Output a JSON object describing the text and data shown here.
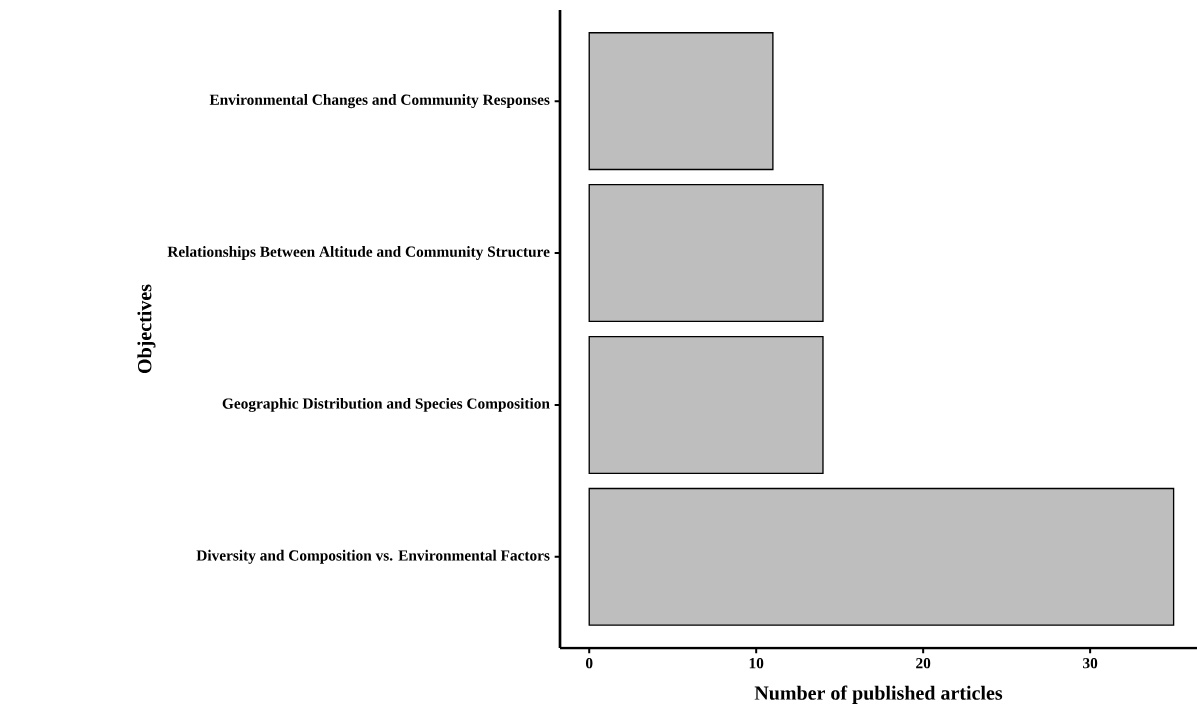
{
  "chart_data": {
    "type": "bar",
    "orientation": "horizontal",
    "xlabel": "Number of published articles",
    "ylabel": "Objectives",
    "categories": [
      "Environmental Changes and Community Responses",
      "Relationships Between Altitude and Community Structure",
      "Geographic Distribution and Species Composition",
      "Diversity and Composition vs. Environmental Factors"
    ],
    "values": [
      11,
      14,
      14,
      35
    ],
    "color": "#bebebe",
    "xlim": [
      -1.75,
      36.4
    ],
    "xticks": [
      0,
      10,
      20,
      30
    ],
    "grid": false
  }
}
